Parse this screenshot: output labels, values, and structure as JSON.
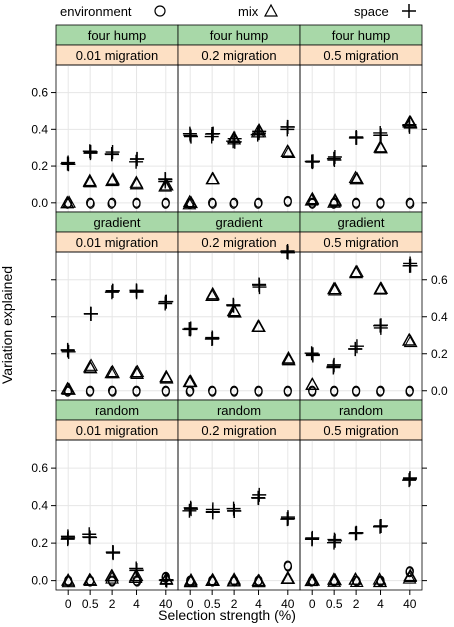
{
  "chart_data": {
    "type": "scatter",
    "legend": {
      "placement": "top",
      "entries": [
        {
          "label": "environment",
          "symbol": "circle"
        },
        {
          "label": "mix",
          "symbol": "triangle"
        },
        {
          "label": "space",
          "symbol": "plus"
        }
      ]
    },
    "ylabel": "Variation explained",
    "xlabel": "Selection strength (%)",
    "x_categories": [
      "0",
      "0.5",
      "2",
      "4",
      "40"
    ],
    "ylim": [
      -0.05,
      0.75
    ],
    "yticks": [
      "0.0",
      "0.2",
      "0.4",
      "0.6"
    ],
    "grid": true,
    "colors": {
      "strip_top": "#a8d8a8",
      "strip_bottom": "#fde0c4",
      "points": "#000000",
      "grid": "#e6e6e6"
    },
    "panels": [
      {
        "landscape": "four hump",
        "migration": "0.01 migration",
        "environment": [
          0.0,
          0.0,
          0.0,
          0.0,
          0.0
        ],
        "mix": [
          0.0,
          0.12,
          0.12,
          0.11,
          0.09
        ],
        "space": [
          0.22,
          0.27,
          0.27,
          0.23,
          0.12
        ]
      },
      {
        "landscape": "four hump",
        "migration": "0.2 migration",
        "environment": [
          0.0,
          0.0,
          0.0,
          0.0,
          0.01
        ],
        "mix": [
          0.0,
          0.13,
          0.35,
          0.39,
          0.28
        ],
        "space": [
          0.37,
          0.37,
          0.34,
          0.38,
          0.41
        ]
      },
      {
        "landscape": "four hump",
        "migration": "0.5 migration",
        "environment": [
          0.0,
          0.0,
          0.0,
          0.0,
          0.0
        ],
        "mix": [
          0.02,
          0.01,
          0.13,
          0.3,
          0.44
        ],
        "space": [
          0.22,
          0.24,
          0.35,
          0.37,
          0.42
        ]
      },
      {
        "landscape": "gradient",
        "migration": "0.01 migration",
        "environment": [
          0.0,
          0.0,
          0.0,
          0.0,
          0.0
        ],
        "mix": [
          0.01,
          0.13,
          0.1,
          0.1,
          0.07
        ],
        "space": [
          0.22,
          0.42,
          0.54,
          0.54,
          0.48
        ]
      },
      {
        "landscape": "gradient",
        "migration": "0.2 migration",
        "environment": [
          0.0,
          0.0,
          0.0,
          0.0,
          0.0
        ],
        "mix": [
          0.05,
          0.52,
          0.43,
          0.35,
          0.17
        ],
        "space": [
          0.33,
          0.29,
          0.47,
          0.57,
          0.75
        ]
      },
      {
        "landscape": "gradient",
        "migration": "0.5 migration",
        "environment": [
          0.0,
          0.0,
          0.0,
          0.0,
          0.0
        ],
        "mix": [
          0.03,
          0.55,
          0.64,
          0.55,
          0.27
        ],
        "space": [
          0.2,
          0.13,
          0.23,
          0.35,
          0.68
        ]
      },
      {
        "landscape": "random",
        "migration": "0.01 migration",
        "environment": [
          0.0,
          0.0,
          0.0,
          0.0,
          0.02
        ],
        "mix": [
          0.0,
          0.0,
          0.02,
          0.02,
          0.01
        ],
        "space": [
          0.23,
          0.24,
          0.15,
          0.06,
          0.0
        ]
      },
      {
        "landscape": "random",
        "migration": "0.2 migration",
        "environment": [
          0.0,
          0.0,
          0.0,
          0.0,
          0.08
        ],
        "mix": [
          0.0,
          0.0,
          0.0,
          0.0,
          0.01
        ],
        "space": [
          0.38,
          0.37,
          0.38,
          0.45,
          0.33
        ]
      },
      {
        "landscape": "random",
        "migration": "0.5 migration",
        "environment": [
          0.0,
          0.0,
          0.0,
          0.0,
          0.05
        ],
        "mix": [
          0.0,
          0.0,
          0.0,
          0.0,
          0.02
        ],
        "space": [
          0.23,
          0.21,
          0.25,
          0.29,
          0.54
        ]
      }
    ]
  }
}
